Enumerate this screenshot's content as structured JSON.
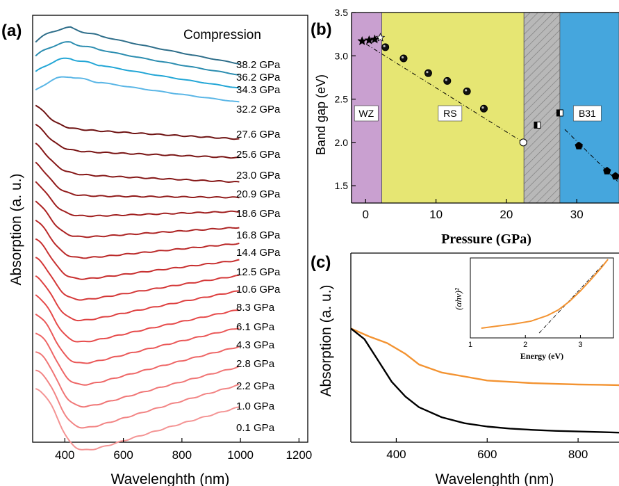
{
  "panels": {
    "a": {
      "tag": "(a)",
      "annotation": "Compression",
      "xlabel": "Wavelenghth (nm)",
      "ylabel": "Absorption (a. u.)",
      "xlim": [
        290,
        1230
      ],
      "xticks": [
        "400",
        "600",
        "800",
        "1000",
        "1200"
      ],
      "xtick_values": [
        400,
        600,
        800,
        1000,
        1200
      ]
    },
    "b": {
      "tag": "(b)",
      "xlabel": "Pressure (GPa)",
      "ylabel": "Band gap (eV)",
      "xlim": [
        -2,
        36
      ],
      "ylim": [
        1.3,
        3.5
      ],
      "xticks": [
        "0",
        "10",
        "20",
        "30"
      ],
      "xtick_values": [
        0,
        10,
        20,
        30
      ],
      "yticks": [
        "1.5",
        "2.0",
        "2.5",
        "3.0",
        "3.5"
      ],
      "ytick_values": [
        1.5,
        2.0,
        2.5,
        3.0,
        3.5
      ],
      "regions": [
        {
          "label": "WZ",
          "from": -2,
          "to": 2.3,
          "color": "#c9a0d0"
        },
        {
          "label": "RS",
          "from": 2.3,
          "to": 22.5,
          "color": "#e6e673"
        },
        {
          "label": "",
          "from": 22.5,
          "to": 27.6,
          "color": "#b8b8b8"
        },
        {
          "label": "B31",
          "from": 27.6,
          "to": 36,
          "color": "#45a6dd"
        }
      ]
    },
    "c": {
      "tag": "(c)",
      "xlabel": "Wavelenghth (nm)",
      "ylabel": "Absorption (a. u.)",
      "xlim": [
        300,
        890
      ],
      "xticks": [
        "400",
        "600",
        "800"
      ],
      "xtick_values": [
        400,
        600,
        800
      ],
      "inset": {
        "ylabel": "(αhν)²",
        "xlabel": "Energy (eV)",
        "xlim": [
          1,
          3.6
        ],
        "xticks": [
          "1",
          "2",
          "3"
        ],
        "xtick_values": [
          1,
          2,
          3
        ]
      }
    }
  },
  "chart_data": [
    {
      "type": "line",
      "panel": "a",
      "x_unit": "nm",
      "series": [
        {
          "name": "38.2 GPa",
          "color": "#2e6e8a"
        },
        {
          "name": "36.2 GPa",
          "color": "#2b8db0"
        },
        {
          "name": "34.3 GPa",
          "color": "#22a6d6"
        },
        {
          "name": "32.2 GPa",
          "color": "#5ab6e6"
        },
        {
          "name": "27.6 GPa",
          "color": "#6e1212"
        },
        {
          "name": "25.6 GPa",
          "color": "#7a1515"
        },
        {
          "name": "23.0 GPa",
          "color": "#861818"
        },
        {
          "name": "20.9 GPa",
          "color": "#921c1c"
        },
        {
          "name": "18.6 GPa",
          "color": "#a01f1f"
        },
        {
          "name": "16.8 GPa",
          "color": "#ad2424"
        },
        {
          "name": "14.4 GPa",
          "color": "#bb2a2a"
        },
        {
          "name": "12.5 GPa",
          "color": "#c83030"
        },
        {
          "name": "10.6 GPa",
          "color": "#d43838"
        },
        {
          "name": "8.3 GPa",
          "color": "#de4040"
        },
        {
          "name": "6.1 GPa",
          "color": "#e64a4a"
        },
        {
          "name": "4.3 GPa",
          "color": "#ea5858"
        },
        {
          "name": "2.8 GPa",
          "color": "#ee6666"
        },
        {
          "name": "2.2 GPa",
          "color": "#f07575"
        },
        {
          "name": "1.0 GPa",
          "color": "#f28484"
        },
        {
          "name": "0.1 GPa",
          "color": "#f49494"
        }
      ]
    },
    {
      "type": "scatter",
      "panel": "b",
      "xlabel": "Pressure (GPa)",
      "ylabel": "Band gap (eV)",
      "series": [
        {
          "marker": "star",
          "x": [
            -0.5,
            0.5,
            1.3,
            2.1
          ],
          "y": [
            3.17,
            3.18,
            3.19,
            3.21
          ]
        },
        {
          "marker": "circle",
          "x": [
            2.8,
            5.4,
            8.9,
            11.6,
            14.4,
            16.8
          ],
          "y": [
            3.1,
            2.97,
            2.8,
            2.71,
            2.59,
            2.39
          ]
        },
        {
          "marker": "circle-open",
          "x": [
            22.4
          ],
          "y": [
            2.0
          ]
        },
        {
          "marker": "square-half",
          "x": [
            24.4,
            27.6
          ],
          "y": [
            2.2,
            2.34
          ]
        },
        {
          "marker": "pentagon",
          "x": [
            30.3,
            34.3,
            35.5
          ],
          "y": [
            1.96,
            1.67,
            1.61
          ]
        }
      ],
      "fit_lines": [
        {
          "x": [
            -1,
            22.4
          ],
          "y": [
            3.19,
            2.0
          ]
        },
        {
          "x": [
            28.3,
            35.8
          ],
          "y": [
            2.15,
            1.55
          ]
        }
      ]
    },
    {
      "type": "line",
      "panel": "c",
      "x_unit": "nm",
      "series": [
        {
          "color": "#f39331",
          "x": [
            300,
            340,
            380,
            420,
            450,
            500,
            550,
            600,
            650,
            700,
            750,
            800,
            850,
            890
          ],
          "y": [
            0.8,
            0.74,
            0.69,
            0.61,
            0.53,
            0.47,
            0.44,
            0.41,
            0.4,
            0.39,
            0.385,
            0.38,
            0.378,
            0.375
          ]
        },
        {
          "color": "#000000",
          "x": [
            300,
            330,
            360,
            390,
            420,
            450,
            500,
            550,
            600,
            650,
            700,
            750,
            800,
            850,
            890
          ],
          "y": [
            0.8,
            0.72,
            0.56,
            0.4,
            0.29,
            0.21,
            0.135,
            0.09,
            0.065,
            0.05,
            0.04,
            0.033,
            0.028,
            0.024,
            0.02
          ]
        }
      ]
    },
    {
      "type": "line",
      "panel": "c-inset",
      "xlabel": "Energy (eV)",
      "ylabel": "(αhν)²",
      "series": [
        {
          "color": "#f39331",
          "x": [
            1.2,
            1.5,
            1.8,
            2.1,
            2.4,
            2.6,
            2.8,
            3.0,
            3.2,
            3.4,
            3.5
          ],
          "y": [
            0.02,
            0.05,
            0.08,
            0.12,
            0.2,
            0.28,
            0.4,
            0.55,
            0.72,
            0.9,
            1.0
          ]
        }
      ],
      "fit_lines": [
        {
          "x": [
            2.25,
            3.5
          ],
          "y": [
            -0.05,
            1.0
          ]
        }
      ]
    }
  ]
}
